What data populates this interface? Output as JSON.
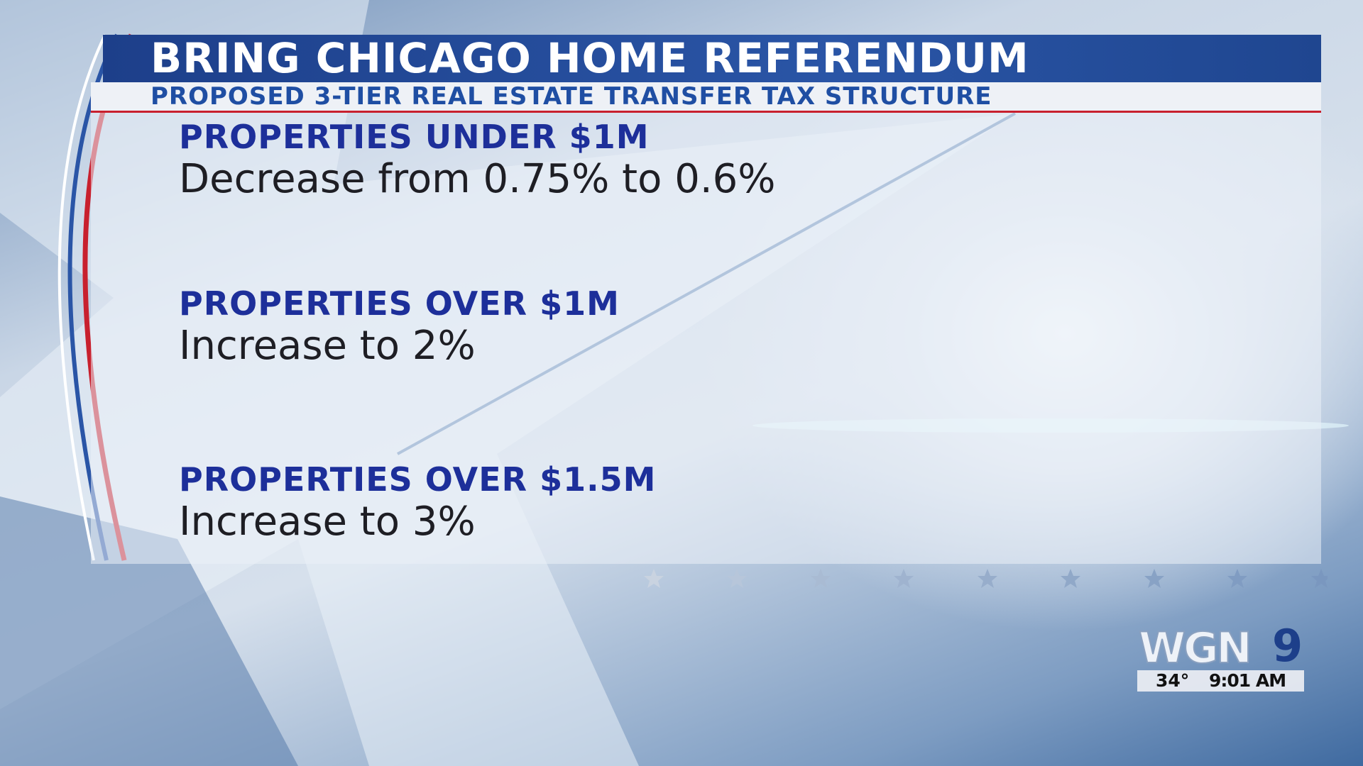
{
  "header": {
    "title": "BRING CHICAGO HOME REFERENDUM",
    "subtitle": "PROPOSED 3-TIER REAL ESTATE TRANSFER TAX STRUCTURE"
  },
  "items": [
    {
      "heading": "PROPERTIES UNDER $1M",
      "detail": "Decrease from 0.75% to 0.6%"
    },
    {
      "heading": "PROPERTIES OVER $1M",
      "detail": "Increase to 2%"
    },
    {
      "heading": "PROPERTIES OVER $1.5M",
      "detail": "Increase to 3%"
    }
  ],
  "logo": {
    "name": "WGN",
    "channel": "9"
  },
  "status": {
    "temperature": "34°",
    "time": "9:01 AM"
  }
}
